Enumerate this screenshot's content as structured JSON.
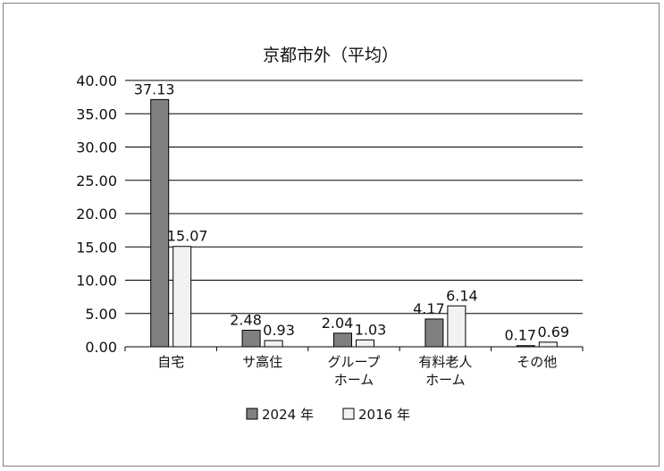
{
  "chart_data": {
    "type": "bar",
    "title": "京都市外（平均）",
    "categories": [
      "自宅",
      "サ高住",
      "グループ\nホーム",
      "有料老人\nホーム",
      "その他"
    ],
    "series": [
      {
        "name": "2024 年",
        "values": [
          37.13,
          2.48,
          2.04,
          4.17,
          0.17
        ],
        "labels": [
          "37.13",
          "2.48",
          "2.04",
          "4.17",
          "0.17"
        ],
        "color": "#808080"
      },
      {
        "name": "2016 年",
        "values": [
          15.07,
          0.93,
          1.03,
          6.14,
          0.69
        ],
        "labels": [
          "15.07",
          "0.93",
          "1.03",
          "6.14",
          "0.69"
        ],
        "color": "#f2f2f2"
      }
    ],
    "ylim": [
      0,
      40
    ],
    "yticks": [
      "0.00",
      "5.00",
      "10.00",
      "15.00",
      "20.00",
      "25.00",
      "30.00",
      "35.00",
      "40.00"
    ],
    "xlabel": "",
    "ylabel": "",
    "grid": true,
    "legend_position": "bottom"
  }
}
